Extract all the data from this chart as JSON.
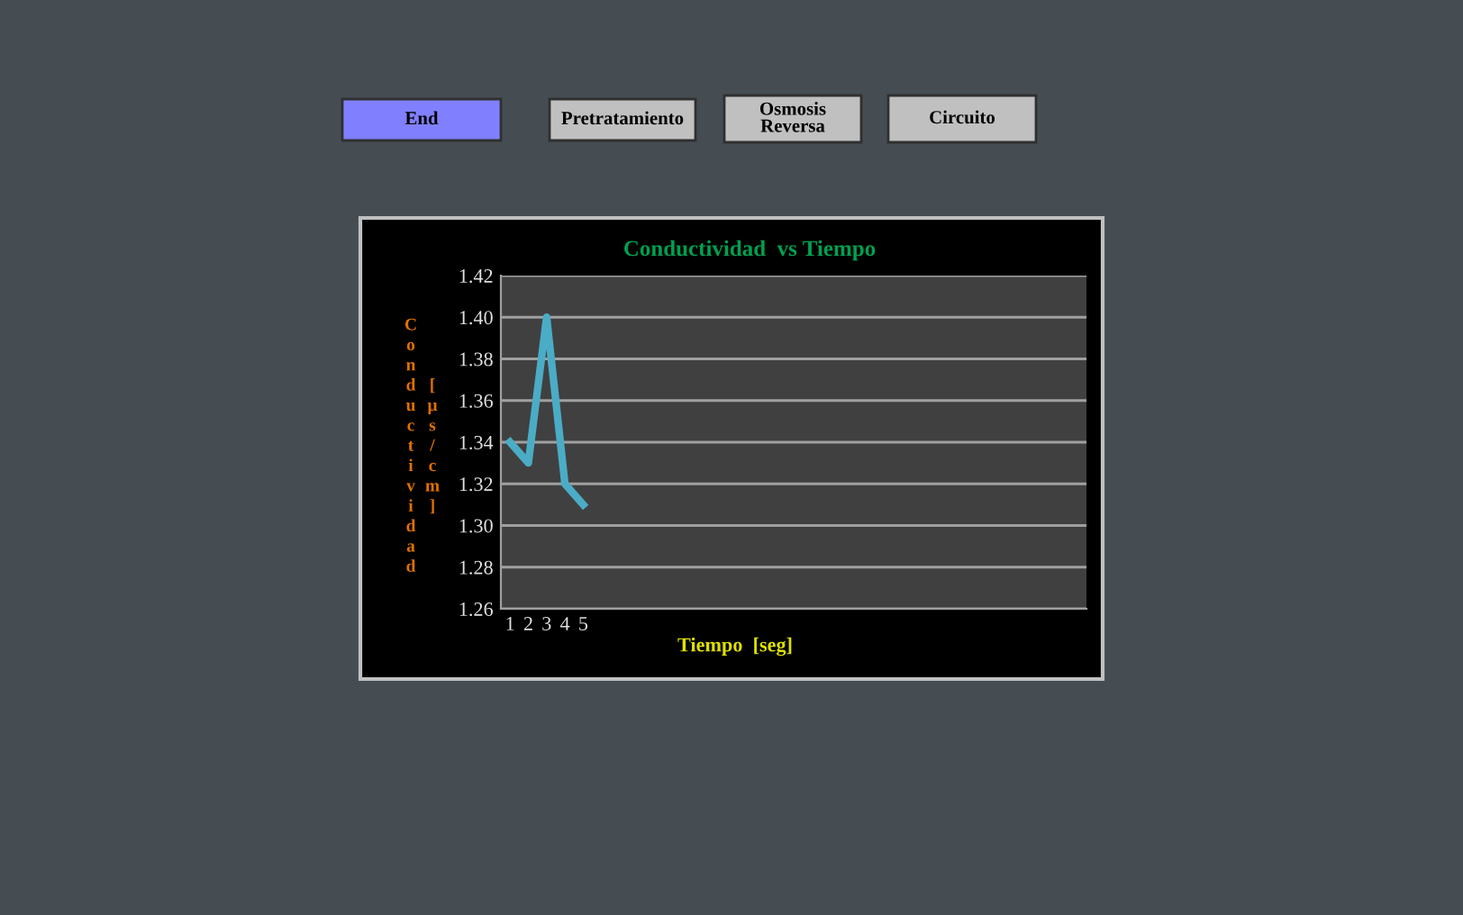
{
  "chart_data": {
    "type": "line",
    "title": "Conductividad  vs Tiempo",
    "xlabel": "Tiempo  [seg]",
    "ylabel": [
      "Conductividad",
      "[µs/cm]"
    ],
    "annotations": [
      "End",
      "Pretratamiento",
      "Osmosis\nReversa",
      "Circuito"
    ],
    "categories": [
      "1",
      "2",
      "3",
      "4",
      "5"
    ],
    "series": [
      {
        "color": "#4bacc6",
        "values": [
          1.34,
          1.33,
          1.4,
          1.32,
          1.31
        ]
      }
    ],
    "ylim": [
      1.26,
      1.42
    ],
    "yticks": [
      {
        "value": 1.26,
        "label": "1.26"
      },
      {
        "value": 1.28,
        "label": "1.28"
      },
      {
        "value": 1.3,
        "label": "1.30"
      },
      {
        "value": 1.32,
        "label": "1.32"
      },
      {
        "value": 1.34,
        "label": "1.34"
      },
      {
        "value": 1.36,
        "label": "1.36"
      },
      {
        "value": 1.38,
        "label": "1.38"
      },
      {
        "value": 1.4,
        "label": "1.40"
      },
      {
        "value": 1.42,
        "label": "1.42"
      }
    ],
    "grid": "y",
    "legend": false,
    "marker": "none",
    "line_style": "solid"
  }
}
